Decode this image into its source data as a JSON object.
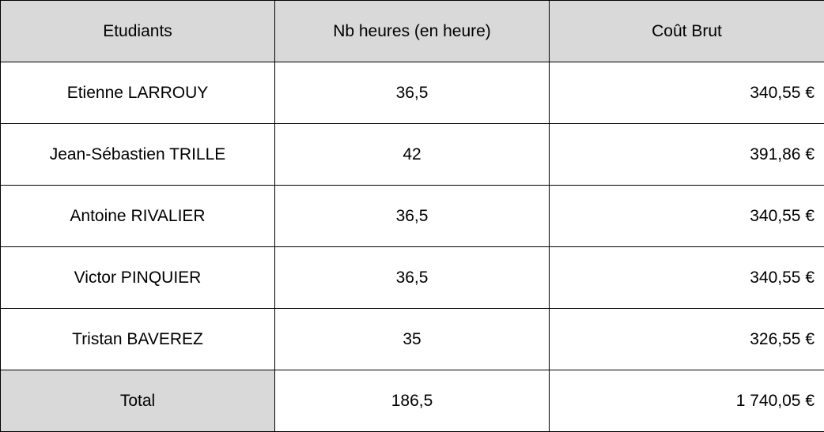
{
  "table": {
    "headers": {
      "student": "Etudiants",
      "hours": "Nb heures (en heure)",
      "cost": "Coût Brut"
    },
    "rows": [
      {
        "student": "Etienne LARROUY",
        "hours": "36,5",
        "cost": "340,55 €"
      },
      {
        "student": "Jean-Sébastien TRILLE",
        "hours": "42",
        "cost": "391,86 €"
      },
      {
        "student": "Antoine RIVALIER",
        "hours": "36,5",
        "cost": "340,55 €"
      },
      {
        "student": "Victor PINQUIER",
        "hours": "36,5",
        "cost": "340,55 €"
      },
      {
        "student": "Tristan BAVEREZ",
        "hours": "35",
        "cost": "326,55 €"
      }
    ],
    "total": {
      "label": "Total",
      "hours": "186,5",
      "cost": "1 740,05 €"
    }
  },
  "colors": {
    "header_background": "#d9d9d9",
    "border": "#000000"
  }
}
